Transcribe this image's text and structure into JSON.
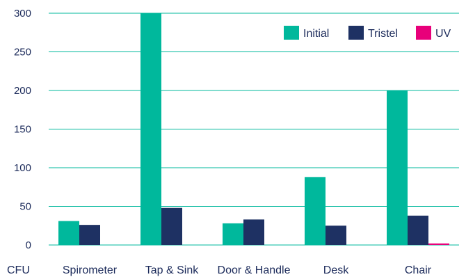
{
  "chart_data": {
    "type": "bar",
    "categories": [
      "Spirometer",
      "Tap & Sink",
      "Door & Handle",
      "Desk",
      "Chair"
    ],
    "series": [
      {
        "name": "Initial",
        "color": "#00b89c",
        "values": [
          31,
          300,
          28,
          88,
          200
        ]
      },
      {
        "name": "Tristel",
        "color": "#1e3163",
        "values": [
          26,
          48,
          33,
          25,
          38
        ]
      },
      {
        "name": "UV",
        "color": "#e8007a",
        "values": [
          0,
          0,
          0,
          0,
          2
        ]
      }
    ],
    "title": "",
    "xlabel": "",
    "ylabel": "CFU",
    "ylim": [
      0,
      300
    ],
    "yticks": [
      0,
      50,
      100,
      150,
      200,
      250,
      300
    ],
    "grid": true,
    "gridline_color": "#00b89c",
    "legend_position": "top-right"
  }
}
